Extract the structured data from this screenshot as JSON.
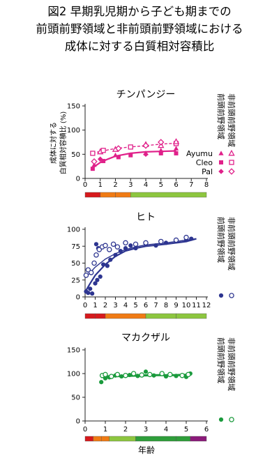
{
  "figure": {
    "title_lines": [
      "図2 早期乳児期から子ども期までの",
      "前頭前野領域と非前頭前野領域における",
      "成体に対する白質相対容積比"
    ],
    "x_axis_label": "年齢",
    "y_axis_label_lines": [
      "成体に対する",
      "白質相対容積比 (%)"
    ],
    "legend_region_labels": [
      "前頭前野領域",
      "非前頭前野領域"
    ],
    "colors": {
      "chimpanzee": "#e0218a",
      "human": "#2d3590",
      "macaque": "#1a9a3c"
    },
    "age_bar_colors": [
      "#d7191c",
      "#f07b14",
      "#8dc63f",
      "#2e9e3a",
      "#8b1a7a"
    ]
  },
  "chart_data": [
    {
      "type": "scatter",
      "title": "チンパンジー",
      "xlim": [
        0,
        8
      ],
      "ylim": [
        0,
        150
      ],
      "x_ticks": [
        0,
        1,
        2,
        3,
        4,
        5,
        6,
        7,
        8
      ],
      "y_ticks": [
        0,
        50,
        100,
        150
      ],
      "grid": false,
      "age_bar": [
        {
          "from": 0,
          "to": 1,
          "color": "#d7191c"
        },
        {
          "from": 1,
          "to": 2,
          "color": "#f07b14"
        },
        {
          "from": 2,
          "to": 3,
          "color": "#f07b14"
        },
        {
          "from": 3,
          "to": 8,
          "color": "#8dc63f"
        }
      ],
      "legend": {
        "individuals": [
          "Ayumu",
          "Cleo",
          "Pal"
        ],
        "markers": [
          "triangle",
          "square",
          "diamond"
        ]
      },
      "series": [
        {
          "region": "prefrontal",
          "filled": true,
          "dashed": false,
          "fit": [
            [
              0.5,
              22
            ],
            [
              1,
              33
            ],
            [
              1.5,
              40
            ],
            [
              2,
              46
            ],
            [
              3,
              52
            ],
            [
              4,
              55
            ],
            [
              5,
              56
            ],
            [
              6,
              57
            ]
          ],
          "points": [
            {
              "x": 0.5,
              "y": 20,
              "m": "square"
            },
            {
              "x": 0.6,
              "y": 28,
              "m": "triangle"
            },
            {
              "x": 1,
              "y": 40,
              "m": "diamond"
            },
            {
              "x": 1.2,
              "y": 36,
              "m": "square"
            },
            {
              "x": 2,
              "y": 48,
              "m": "triangle"
            },
            {
              "x": 2.2,
              "y": 44,
              "m": "square"
            },
            {
              "x": 3,
              "y": 48,
              "m": "square"
            },
            {
              "x": 4,
              "y": 52,
              "m": "triangle"
            },
            {
              "x": 4,
              "y": 50,
              "m": "diamond"
            },
            {
              "x": 5,
              "y": 58,
              "m": "triangle"
            },
            {
              "x": 5,
              "y": 52,
              "m": "square"
            },
            {
              "x": 6,
              "y": 62,
              "m": "triangle"
            },
            {
              "x": 6,
              "y": 52,
              "m": "square"
            }
          ]
        },
        {
          "region": "nonprefrontal",
          "filled": false,
          "dashed": true,
          "fit": [
            [
              0.5,
              52
            ],
            [
              1,
              56
            ],
            [
              2,
              62
            ],
            [
              3,
              65
            ],
            [
              4,
              68
            ],
            [
              5,
              71
            ],
            [
              6,
              73
            ]
          ],
          "points": [
            {
              "x": 0.5,
              "y": 52,
              "m": "square"
            },
            {
              "x": 0.6,
              "y": 35,
              "m": "diamond"
            },
            {
              "x": 1,
              "y": 55,
              "m": "triangle"
            },
            {
              "x": 1.2,
              "y": 58,
              "m": "square"
            },
            {
              "x": 2,
              "y": 60,
              "m": "triangle"
            },
            {
              "x": 2.2,
              "y": 62,
              "m": "diamond"
            },
            {
              "x": 3,
              "y": 65,
              "m": "square"
            },
            {
              "x": 4,
              "y": 70,
              "m": "triangle"
            },
            {
              "x": 4,
              "y": 68,
              "m": "diamond"
            },
            {
              "x": 5,
              "y": 68,
              "m": "triangle"
            },
            {
              "x": 5,
              "y": 75,
              "m": "diamond"
            },
            {
              "x": 6,
              "y": 72,
              "m": "square"
            },
            {
              "x": 6,
              "y": 76,
              "m": "triangle"
            }
          ]
        }
      ]
    },
    {
      "type": "scatter",
      "title": "ヒト",
      "xlim": [
        0,
        12
      ],
      "ylim": [
        0,
        100
      ],
      "x_ticks": [
        0,
        1,
        2,
        3,
        4,
        5,
        6,
        7,
        8,
        9,
        10,
        11,
        12
      ],
      "y_ticks": [
        0,
        25,
        50,
        75,
        100
      ],
      "grid": false,
      "age_bar": [
        {
          "from": 0,
          "to": 1,
          "color": "#d7191c"
        },
        {
          "from": 1,
          "to": 2,
          "color": "#d7191c"
        },
        {
          "from": 2,
          "to": 6,
          "color": "#f07b14"
        },
        {
          "from": 6,
          "to": 9,
          "color": "#8dc63f"
        },
        {
          "from": 9,
          "to": 12,
          "color": "#8dc63f"
        }
      ],
      "series": [
        {
          "region": "prefrontal",
          "filled": true,
          "dashed": false,
          "fit": [
            [
              0.1,
              10
            ],
            [
              0.5,
              20
            ],
            [
              1,
              32
            ],
            [
              2,
              48
            ],
            [
              3,
              60
            ],
            [
              4,
              68
            ],
            [
              5,
              72
            ],
            [
              6,
              75
            ],
            [
              8,
              78
            ],
            [
              10,
              82
            ],
            [
              11,
              86
            ]
          ],
          "points": [
            {
              "x": 0.1,
              "y": 8
            },
            {
              "x": 0.3,
              "y": 6
            },
            {
              "x": 0.5,
              "y": 12
            },
            {
              "x": 0.7,
              "y": 5
            },
            {
              "x": 1,
              "y": 20
            },
            {
              "x": 1.2,
              "y": 25
            },
            {
              "x": 1.5,
              "y": 30
            },
            {
              "x": 1.8,
              "y": 48
            },
            {
              "x": 1.1,
              "y": 78
            },
            {
              "x": 1.3,
              "y": 72
            },
            {
              "x": 2.2,
              "y": 46
            },
            {
              "x": 2.5,
              "y": 55
            },
            {
              "x": 3,
              "y": 62
            },
            {
              "x": 3.5,
              "y": 68
            },
            {
              "x": 4,
              "y": 72
            },
            {
              "x": 4.5,
              "y": 76
            },
            {
              "x": 5,
              "y": 72
            },
            {
              "x": 6,
              "y": 78
            },
            {
              "x": 7,
              "y": 76
            },
            {
              "x": 8,
              "y": 80
            },
            {
              "x": 9,
              "y": 82
            },
            {
              "x": 10,
              "y": 84
            },
            {
              "x": 10.5,
              "y": 86
            }
          ]
        },
        {
          "region": "nonprefrontal",
          "filled": false,
          "dashed": false,
          "fit": [
            [
              0.1,
              30
            ],
            [
              0.5,
              36
            ],
            [
              1,
              44
            ],
            [
              2,
              56
            ],
            [
              3,
              64
            ],
            [
              4,
              70
            ],
            [
              5,
              74
            ],
            [
              6,
              77
            ],
            [
              8,
              80
            ],
            [
              10,
              84
            ],
            [
              11,
              86
            ]
          ],
          "points": [
            {
              "x": 0.1,
              "y": 32
            },
            {
              "x": 0.3,
              "y": 40
            },
            {
              "x": 0.6,
              "y": 36
            },
            {
              "x": 0.9,
              "y": 50
            },
            {
              "x": 1.1,
              "y": 62
            },
            {
              "x": 1.4,
              "y": 70
            },
            {
              "x": 1.7,
              "y": 74
            },
            {
              "x": 2,
              "y": 76
            },
            {
              "x": 2.4,
              "y": 70
            },
            {
              "x": 2.8,
              "y": 78
            },
            {
              "x": 3.2,
              "y": 74
            },
            {
              "x": 4,
              "y": 80
            },
            {
              "x": 5,
              "y": 78
            },
            {
              "x": 6,
              "y": 80
            },
            {
              "x": 7.5,
              "y": 82
            },
            {
              "x": 9,
              "y": 84
            },
            {
              "x": 10,
              "y": 88
            }
          ]
        }
      ]
    },
    {
      "type": "scatter",
      "title": "マカクザル",
      "xlim": [
        0,
        6
      ],
      "ylim": [
        0,
        150
      ],
      "x_ticks": [
        0,
        1,
        2,
        3,
        4,
        5,
        6
      ],
      "y_ticks": [
        0,
        50,
        100,
        150
      ],
      "grid": false,
      "age_bar": [
        {
          "from": 0,
          "to": 0.4,
          "color": "#d7191c"
        },
        {
          "from": 0.4,
          "to": 0.8,
          "color": "#f07b14"
        },
        {
          "from": 0.8,
          "to": 1.2,
          "color": "#f07b14"
        },
        {
          "from": 1.2,
          "to": 2.5,
          "color": "#8dc63f"
        },
        {
          "from": 2.5,
          "to": 4.5,
          "color": "#2e9e3a"
        },
        {
          "from": 4.5,
          "to": 5.2,
          "color": "#2e9e3a"
        },
        {
          "from": 5.2,
          "to": 6,
          "color": "#8b1a7a"
        }
      ],
      "series": [
        {
          "region": "prefrontal",
          "filled": true,
          "dashed": false,
          "fit": [
            [
              0.8,
              92
            ],
            [
              1.5,
              94
            ],
            [
              2.5,
              95
            ],
            [
              3.5,
              96
            ],
            [
              4.5,
              96
            ],
            [
              5.2,
              97
            ]
          ],
          "points": [
            {
              "x": 0.8,
              "y": 82
            },
            {
              "x": 0.9,
              "y": 95
            },
            {
              "x": 1,
              "y": 90
            },
            {
              "x": 1.2,
              "y": 92
            },
            {
              "x": 1.5,
              "y": 96
            },
            {
              "x": 1.8,
              "y": 94
            },
            {
              "x": 2.2,
              "y": 97
            },
            {
              "x": 2.6,
              "y": 95
            },
            {
              "x": 3,
              "y": 104
            },
            {
              "x": 3.4,
              "y": 96
            },
            {
              "x": 4,
              "y": 94
            },
            {
              "x": 4.5,
              "y": 95
            },
            {
              "x": 5,
              "y": 93
            },
            {
              "x": 5.2,
              "y": 100
            }
          ]
        },
        {
          "region": "nonprefrontal",
          "filled": false,
          "dashed": false,
          "fit": [
            [
              0.8,
              95
            ],
            [
              1.5,
              96
            ],
            [
              2.5,
              97
            ],
            [
              3.5,
              98
            ],
            [
              4.5,
              98
            ],
            [
              5.2,
              99
            ]
          ],
          "points": [
            {
              "x": 0.85,
              "y": 96
            },
            {
              "x": 1,
              "y": 98
            },
            {
              "x": 1.3,
              "y": 94
            },
            {
              "x": 1.6,
              "y": 98
            },
            {
              "x": 2,
              "y": 96
            },
            {
              "x": 2.4,
              "y": 100
            },
            {
              "x": 2.8,
              "y": 97
            },
            {
              "x": 3.2,
              "y": 98
            },
            {
              "x": 3.8,
              "y": 100
            },
            {
              "x": 4.2,
              "y": 98
            },
            {
              "x": 4.8,
              "y": 96
            },
            {
              "x": 5.1,
              "y": 98
            }
          ]
        }
      ]
    }
  ]
}
